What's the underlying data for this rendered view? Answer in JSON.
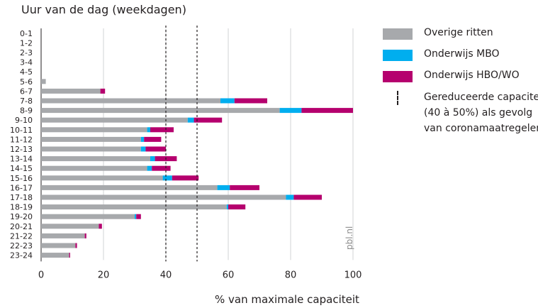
{
  "chart_data": {
    "type": "bar",
    "orientation": "horizontal",
    "stacked": true,
    "title": "Uur van de dag (weekdagen)",
    "xlabel": "% van maximale capaciteit",
    "categories": [
      "0-1",
      "1-2",
      "2-3",
      "3-4",
      "4-5",
      "5-6",
      "6-7",
      "7-8",
      "8-9",
      "9-10",
      "10-11",
      "11-12",
      "12-13",
      "13-14",
      "14-15",
      "15-16",
      "16-17",
      "17-18",
      "18-19",
      "19-20",
      "20-21",
      "21-22",
      "22-23",
      "23-24"
    ],
    "series": [
      {
        "name": "Overige ritten",
        "color": "#a7a9ac",
        "values": [
          0,
          0,
          0,
          0,
          0,
          1.5,
          19,
          57.5,
          76.5,
          47,
          34,
          32,
          32,
          35,
          34,
          39,
          56.5,
          78.5,
          59.5,
          30,
          18.5,
          14,
          11,
          9
        ]
      },
      {
        "name": "Onderwijs MBO",
        "color": "#00aeef",
        "values": [
          0,
          0,
          0,
          0,
          0,
          0,
          0,
          4.5,
          7,
          2,
          1,
          1,
          1.5,
          1.5,
          1.5,
          3,
          4,
          2.5,
          0.5,
          0.5,
          0,
          0,
          0,
          0
        ]
      },
      {
        "name": "Onderwijs HBO/WO",
        "color": "#b5006e",
        "values": [
          0,
          0,
          0,
          0,
          0,
          0,
          1.5,
          10.5,
          16.5,
          9,
          7.5,
          5.5,
          6.5,
          7,
          6,
          8.5,
          9.5,
          9,
          5.5,
          1.5,
          1,
          0.5,
          0.5,
          0.3
        ]
      }
    ],
    "xlim": [
      0,
      100
    ],
    "xticks": [
      0,
      20,
      40,
      60,
      80,
      100
    ],
    "reference_lines": [
      40,
      50
    ],
    "reference_label": "Gereduceerde capaciteit (40 à 50%) als gevolg van coronamaatregelen",
    "grid": true,
    "legend": "right"
  },
  "legend": {
    "items": [
      "Overige ritten",
      "Onderwijs MBO",
      "Onderwijs HBO/WO"
    ],
    "reference_lines": [
      "Gereduceerde capaciteit",
      "(40 à 50%) als gevolg",
      "van coronamaatregelen"
    ]
  },
  "watermark": "pbl.nl"
}
